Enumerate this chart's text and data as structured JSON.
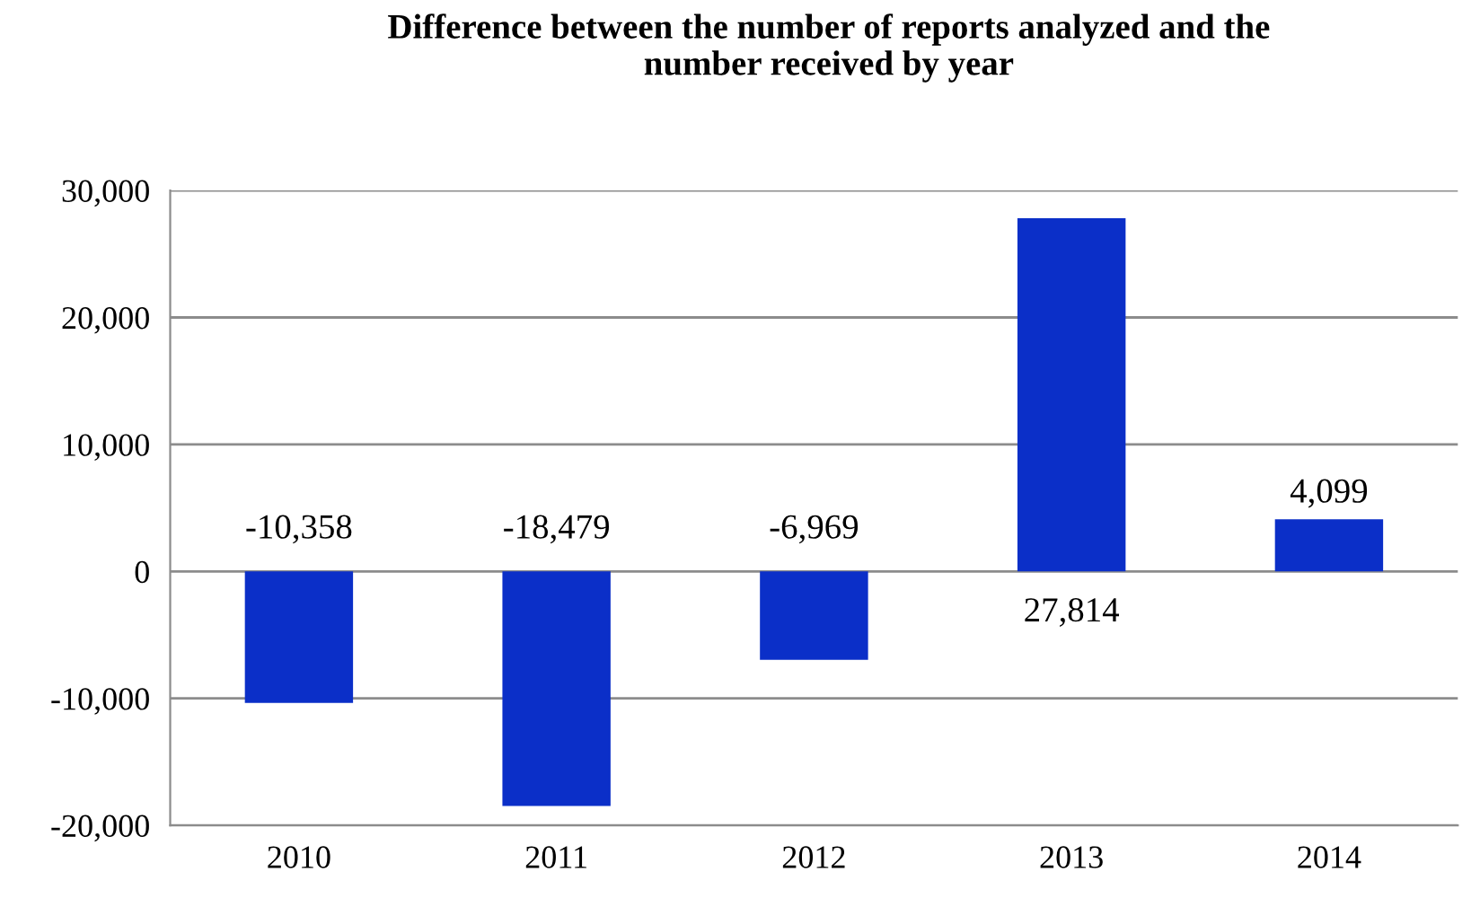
{
  "chart_data": {
    "type": "bar",
    "title": "Difference between the number of reports analyzed and the\nnumber received by year",
    "categories": [
      "2010",
      "2011",
      "2012",
      "2013",
      "2014"
    ],
    "values": [
      -10358,
      -18479,
      -6969,
      27814,
      4099
    ],
    "color": "#0b2fc8",
    "ylim": [
      -20000,
      30000
    ],
    "yticks": [
      {
        "value": -20000,
        "label": "-20,000"
      },
      {
        "value": -10000,
        "label": "-10,000"
      },
      {
        "value": 0,
        "label": "0"
      },
      {
        "value": 10000,
        "label": "10,000"
      },
      {
        "value": 20000,
        "label": "20,000"
      },
      {
        "value": 30000,
        "label": "30,000"
      }
    ],
    "value_labels": [
      "-10,358",
      "-18,479",
      "-6,969",
      "27,814",
      "4,099"
    ],
    "grid": "y"
  }
}
